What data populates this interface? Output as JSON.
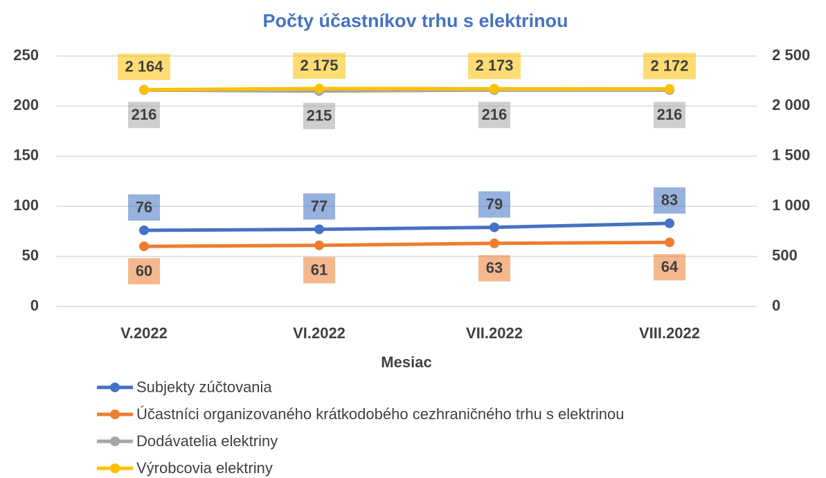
{
  "chart_data": {
    "type": "line",
    "title": "Počty účastníkov trhu s elektrinou",
    "x_label": "Mesiac",
    "categories": [
      "V.2022",
      "VI.2022",
      "VII.2022",
      "VIII.2022"
    ],
    "series": [
      {
        "name": "Subjekty zúčtovania",
        "color": "#4472c4",
        "values": [
          76,
          77,
          79,
          83
        ]
      },
      {
        "name": "Účastníci organizovaného krátkodobého cezhraničného trhu s elektrinou",
        "color": "#ed7d31",
        "values": [
          60,
          61,
          63,
          64
        ]
      },
      {
        "name": "Dodávatelia elektriny",
        "color": "#a5a5a5",
        "values": [
          216,
          215,
          216,
          216
        ]
      },
      {
        "name": "Výrobcovia elektriny",
        "color": "#ffc000",
        "axis": "y2",
        "values": [
          2164,
          2175,
          2173,
          2172
        ],
        "value_labels": [
          "2 164",
          "2 175",
          "2 173",
          "2 172"
        ]
      }
    ],
    "ylim": [
      0,
      250
    ],
    "yticks": [
      0,
      50,
      100,
      150,
      200,
      250
    ],
    "y2lim": [
      0,
      2500
    ],
    "y2ticks": [
      0,
      500,
      {
        "value": 1000,
        "label": "1 000"
      },
      {
        "value": 1500,
        "label": "1 500"
      },
      {
        "value": 2000,
        "label": "2 000"
      },
      {
        "value": 2500,
        "label": "2 500"
      }
    ],
    "grid": true,
    "legend": "bottom"
  }
}
